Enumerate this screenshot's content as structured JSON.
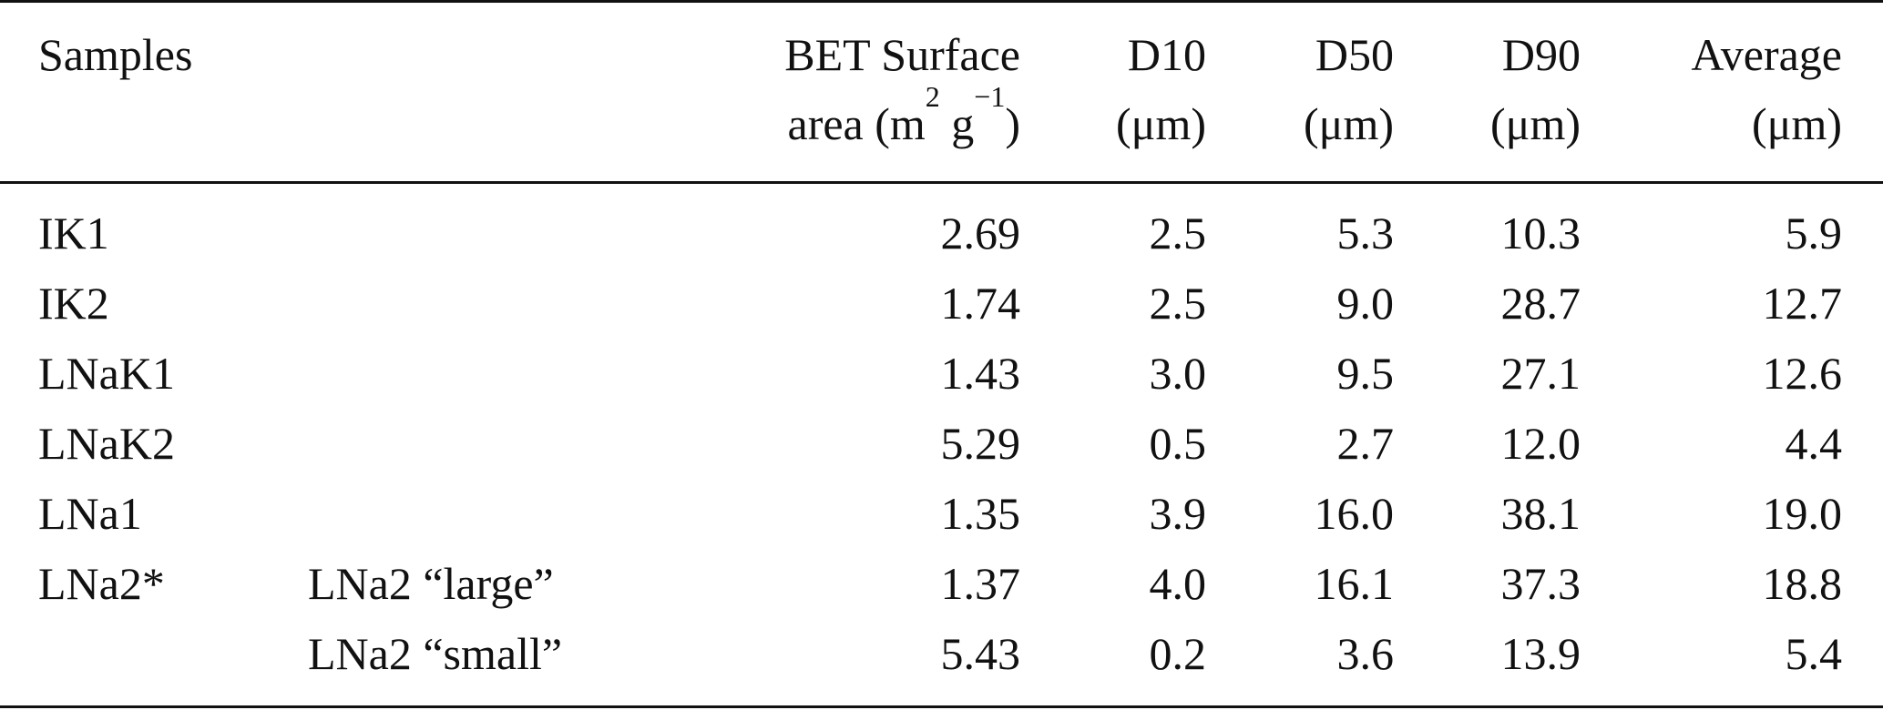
{
  "header": {
    "col_samples": "Samples",
    "col_bet_line1": "BET Surface",
    "col_bet_line2_pre": "area (m",
    "col_bet_sup1": "2",
    "col_bet_mid": " g",
    "col_bet_sup2": "−1",
    "col_bet_post": ")",
    "col_d10_line1": "D10",
    "col_d10_line2": "(μm)",
    "col_d50_line1": "D50",
    "col_d50_line2": "(μm)",
    "col_d90_line1": "D90",
    "col_d90_line2": "(μm)",
    "col_avg_line1": "Average",
    "col_avg_line2": "(μm)"
  },
  "rows": [
    {
      "sample": "IK1",
      "sub": "",
      "bet": "2.69",
      "d10": "2.5",
      "d50": "5.3",
      "d90": "10.3",
      "avg": "5.9"
    },
    {
      "sample": "IK2",
      "sub": "",
      "bet": "1.74",
      "d10": "2.5",
      "d50": "9.0",
      "d90": "28.7",
      "avg": "12.7"
    },
    {
      "sample": "LNaK1",
      "sub": "",
      "bet": "1.43",
      "d10": "3.0",
      "d50": "9.5",
      "d90": "27.1",
      "avg": "12.6"
    },
    {
      "sample": "LNaK2",
      "sub": "",
      "bet": "5.29",
      "d10": "0.5",
      "d50": "2.7",
      "d90": "12.0",
      "avg": "4.4"
    },
    {
      "sample": "LNa1",
      "sub": "",
      "bet": "1.35",
      "d10": "3.9",
      "d50": "16.0",
      "d90": "38.1",
      "avg": "19.0"
    },
    {
      "sample": "LNa2*",
      "sub": "LNa2 “large”",
      "bet": "1.37",
      "d10": "4.0",
      "d50": "16.1",
      "d90": "37.3",
      "avg": "18.8"
    },
    {
      "sample": "",
      "sub": "LNa2 “small”",
      "bet": "5.43",
      "d10": "0.2",
      "d50": "3.6",
      "d90": "13.9",
      "avg": "5.4"
    }
  ]
}
